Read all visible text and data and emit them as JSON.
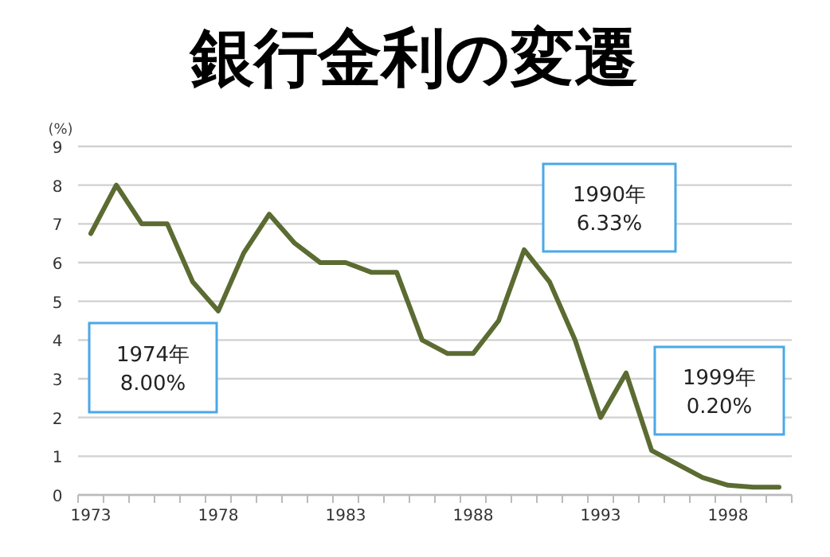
{
  "chart_data": {
    "type": "line",
    "title": "銀行金利の変遷",
    "ylabel": "(%)",
    "categories": [
      "1973",
      null,
      null,
      null,
      null,
      "1978",
      null,
      null,
      null,
      null,
      "1983",
      null,
      null,
      null,
      null,
      "1988",
      null,
      null,
      null,
      null,
      "1993",
      null,
      null,
      null,
      null,
      "1998",
      null,
      null
    ],
    "values": [
      6.75,
      8.0,
      7.0,
      7.0,
      5.5,
      4.75,
      6.25,
      7.25,
      6.5,
      6.0,
      6.0,
      5.75,
      5.75,
      4.0,
      3.65,
      3.65,
      4.5,
      6.33,
      5.5,
      4.0,
      2.0,
      3.15,
      1.15,
      0.8,
      0.45,
      0.25,
      0.2,
      0.2
    ],
    "color": "#5b6b32",
    "ylim": [
      0,
      9
    ],
    "yticks": [
      0,
      1,
      2,
      3,
      4,
      5,
      6,
      7,
      8,
      9
    ],
    "grid": "y",
    "marker": "none",
    "line_style": "solid",
    "annotations": [
      "1974年\n8.00%",
      "1990年\n6.33%",
      "1999年\n0.20%"
    ]
  }
}
